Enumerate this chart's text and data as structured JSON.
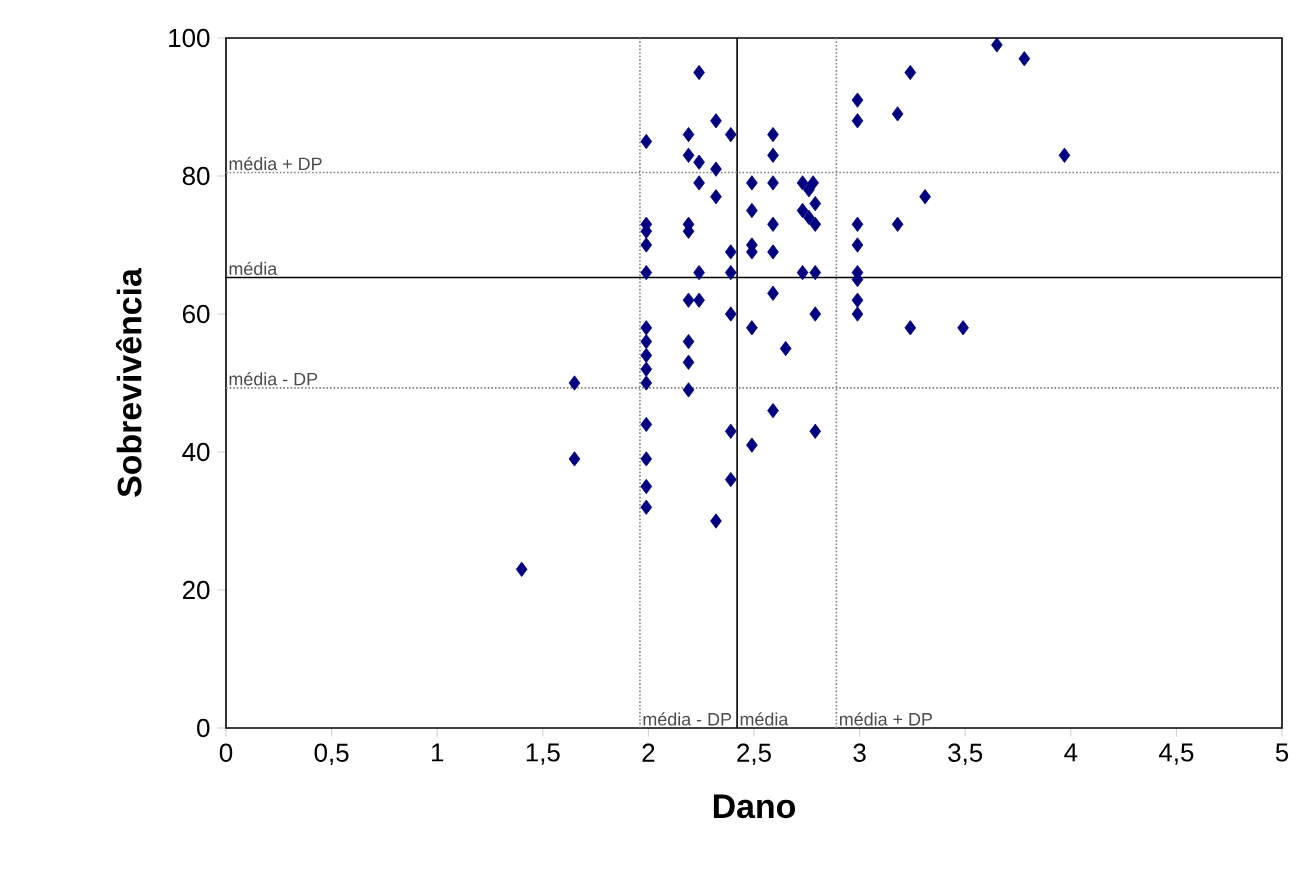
{
  "chart_data": {
    "type": "scatter",
    "xlabel": "Dano",
    "ylabel": "Sobrevivência",
    "xlim": [
      0,
      5
    ],
    "ylim": [
      0,
      100
    ],
    "xticks": [
      0,
      {
        "value": 0.5,
        "label": "0,5"
      },
      1,
      {
        "value": 1.5,
        "label": "1,5"
      },
      2,
      {
        "value": 2.5,
        "label": "2,5"
      },
      3,
      {
        "value": 3.5,
        "label": "3,5"
      },
      4,
      {
        "value": 4.5,
        "label": "4,5"
      },
      5
    ],
    "yticks": [
      0,
      20,
      40,
      60,
      80,
      100
    ],
    "marker": "diamond",
    "series": [
      {
        "color": "#000080",
        "x": [
          1.4,
          1.65,
          1.65,
          1.99,
          1.99,
          1.99,
          1.99,
          1.99,
          1.99,
          1.99,
          1.99,
          1.99,
          1.99,
          1.99,
          1.99,
          1.99,
          1.99,
          2.19,
          2.19,
          2.19,
          2.19,
          2.19,
          2.19,
          2.19,
          2.19,
          2.24,
          2.24,
          2.24,
          2.24,
          2.24,
          2.32,
          2.32,
          2.32,
          2.32,
          2.39,
          2.39,
          2.39,
          2.39,
          2.39,
          2.39,
          2.49,
          2.49,
          2.49,
          2.49,
          2.49,
          2.49,
          2.59,
          2.59,
          2.59,
          2.59,
          2.59,
          2.59,
          2.59,
          2.65,
          2.73,
          2.73,
          2.73,
          2.76,
          2.76,
          2.78,
          2.79,
          2.79,
          2.79,
          2.79,
          2.79,
          2.99,
          2.99,
          2.99,
          2.99,
          2.99,
          2.99,
          2.99,
          2.99,
          3.18,
          3.18,
          3.24,
          3.24,
          3.31,
          3.49,
          3.65,
          3.78,
          3.97
        ],
        "values": [
          23,
          50,
          39,
          85,
          73,
          72,
          70,
          66,
          58,
          56,
          54,
          52,
          50,
          44,
          39,
          35,
          32,
          86,
          83,
          73,
          72,
          62,
          56,
          53,
          49,
          95,
          82,
          79,
          66,
          62,
          88,
          81,
          77,
          30,
          86,
          69,
          66,
          60,
          43,
          36,
          79,
          75,
          70,
          69,
          58,
          41,
          86,
          83,
          79,
          73,
          69,
          63,
          46,
          55,
          79,
          75,
          66,
          78,
          74,
          79,
          76,
          73,
          66,
          60,
          43,
          91,
          88,
          73,
          70,
          66,
          65,
          62,
          60,
          89,
          73,
          95,
          58,
          77,
          58,
          99,
          97,
          83
        ]
      }
    ],
    "ref_lines": [
      {
        "axis": "x",
        "value": 1.96,
        "label": "média - DP",
        "color": "#808080",
        "line_style": "dotted"
      },
      {
        "axis": "x",
        "value": 2.42,
        "label": "média",
        "color": "#000000",
        "line_style": "solid"
      },
      {
        "axis": "x",
        "value": 2.89,
        "label": "média + DP",
        "color": "#808080",
        "line_style": "dotted"
      },
      {
        "axis": "y",
        "value": 80.5,
        "label": "média + DP",
        "color": "#808080",
        "line_style": "dotted"
      },
      {
        "axis": "y",
        "value": 65.3,
        "label": "média",
        "color": "#000000",
        "line_style": "solid"
      },
      {
        "axis": "y",
        "value": 49.3,
        "label": "média - DP",
        "color": "#808080",
        "line_style": "dotted"
      }
    ]
  }
}
